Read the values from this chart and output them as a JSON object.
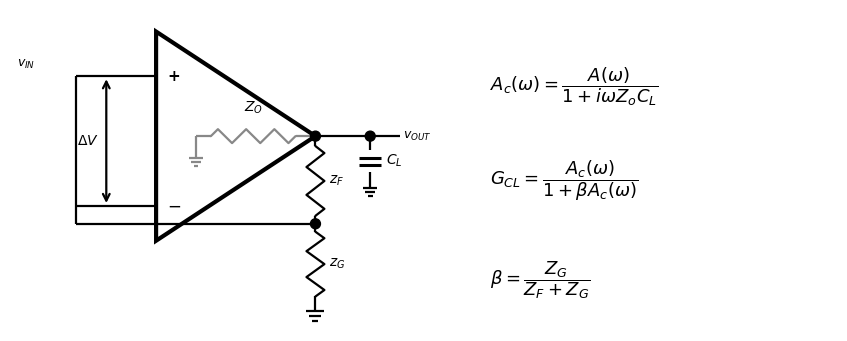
{
  "bg_color": "#ffffff",
  "line_color": "#000000",
  "gray_color": "#888888",
  "figsize": [
    8.47,
    3.41
  ],
  "dpi": 100
}
